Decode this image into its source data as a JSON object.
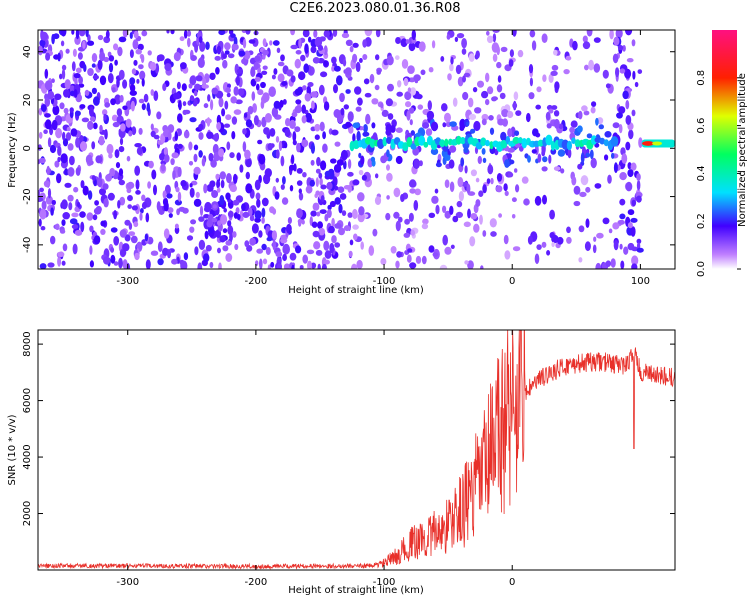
{
  "title": "C2E6.2023.080.01.36.R08",
  "chart_data": [
    {
      "type": "heatmap",
      "xlabel": "Height of straight line (km)",
      "ylabel": "Frequency (Hz)",
      "xlim": [
        -370,
        127
      ],
      "ylim": [
        -50,
        49
      ],
      "xticks": [
        -300,
        -200,
        -100,
        0,
        100
      ],
      "xtick_labels": [
        "-300",
        "-200",
        "-100",
        "0",
        "100"
      ],
      "yticks": [
        -40,
        -20,
        0,
        20,
        40
      ],
      "ytick_labels": [
        "-40",
        "-20",
        "0",
        "20",
        "40"
      ],
      "colorbar": {
        "label": "Normalized spectral amplitude",
        "range": [
          0,
          1
        ],
        "ticks": [
          0.0,
          0.2,
          0.4,
          0.6,
          0.8
        ],
        "tick_labels": [
          "0.0",
          "0.2",
          "0.4",
          "0.6",
          "0.8"
        ]
      },
      "signal_line": {
        "description_points_x": [
          -130,
          -100,
          -50,
          0,
          50,
          80,
          100,
          127
        ],
        "frequency_hz": [
          2,
          3,
          2,
          2,
          3,
          3,
          2,
          2
        ]
      },
      "grid": false
    },
    {
      "type": "line",
      "xlabel": "Height of straight line (km)",
      "ylabel": "SNR (10 * v/v)",
      "xlim": [
        -370,
        127
      ],
      "ylim": [
        0,
        8500
      ],
      "xticks": [
        -300,
        -200,
        -100,
        0
      ],
      "xtick_labels": [
        "-300",
        "-200",
        "-100",
        "0"
      ],
      "yticks": [
        2000,
        4000,
        6000,
        8000
      ],
      "ytick_labels": [
        "2000",
        "4000",
        "6000",
        "8000"
      ],
      "series": [
        {
          "color": "#e8302a",
          "x": [
            -370,
            -300,
            -200,
            -110,
            -100,
            -90,
            -80,
            -70,
            -60,
            -50,
            -40,
            -30,
            -20,
            -10,
            0,
            10,
            20,
            30,
            40,
            50,
            60,
            70,
            80,
            90,
            95,
            100,
            110,
            127
          ],
          "y": [
            150,
            150,
            130,
            150,
            250,
            500,
            900,
            1100,
            1300,
            1600,
            2100,
            2800,
            3700,
            4900,
            5900,
            6300,
            6700,
            7000,
            7200,
            7300,
            7350,
            7380,
            7300,
            7250,
            7800,
            7000,
            6900,
            6800
          ]
        }
      ],
      "grid": false
    }
  ]
}
